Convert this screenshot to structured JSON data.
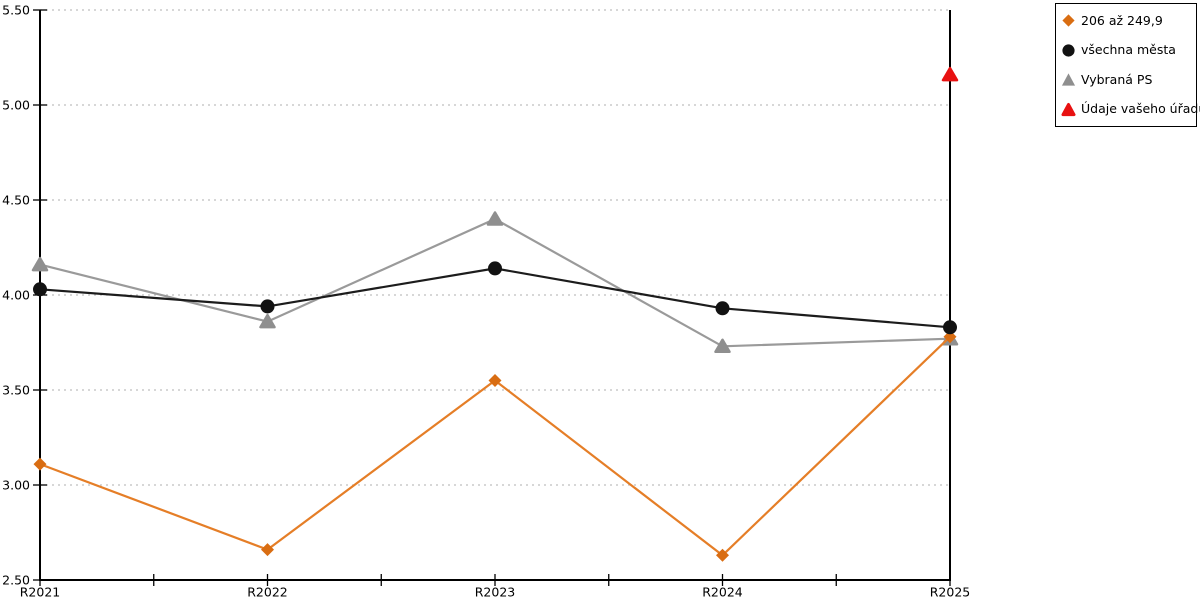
{
  "chart_data": {
    "type": "line",
    "title": "",
    "xlabel": "",
    "ylabel": "",
    "categories": [
      "R2021",
      "R2022",
      "R2023",
      "R2024",
      "R2025"
    ],
    "series": [
      {
        "name": "206 až 249,9",
        "marker": "diamond",
        "line_color": "#E57E27",
        "marker_color": "#D96D12",
        "values": [
          3.11,
          2.66,
          3.55,
          2.63,
          3.78
        ]
      },
      {
        "name": "všechna města",
        "marker": "circle",
        "line_color": "#1C1C1C",
        "marker_color": "#121212",
        "values": [
          4.03,
          3.94,
          4.14,
          3.93,
          3.83
        ]
      },
      {
        "name": "Vybraná PS",
        "marker": "triangle",
        "line_color": "#9A9A9A",
        "marker_color": "#8F8F8F",
        "values": [
          4.16,
          3.86,
          4.4,
          3.73,
          3.77
        ]
      },
      {
        "name": "Údaje vašeho úřadu",
        "marker": "triangle",
        "line_color": "#E81111",
        "marker_color": "#E81111",
        "values": [
          null,
          null,
          null,
          null,
          5.16
        ]
      }
    ],
    "ylim": [
      2.5,
      5.5
    ],
    "ytick_step": 0.5,
    "ytick_labels": [
      "2.50",
      "3.00",
      "3.50",
      "4.00",
      "4.50",
      "5.00",
      "5.50"
    ],
    "grid": "horizontal-dotted",
    "gridline_color": "#BFBFBF",
    "axis_color": "#000000",
    "tick_label_color": "#000000",
    "legend_position": "top-right",
    "background": "#FFFFFF"
  }
}
